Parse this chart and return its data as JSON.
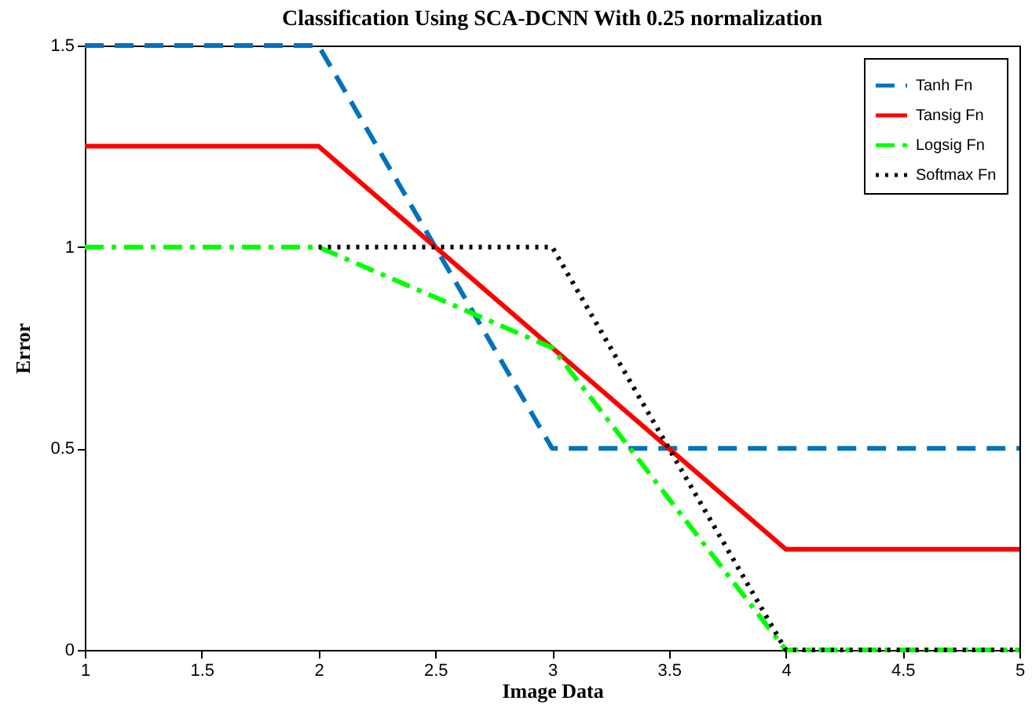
{
  "chart_data": {
    "type": "line",
    "title": "Classification Using SCA-DCNN With 0.25 normalization",
    "xlabel": "Image Data",
    "ylabel": "Error",
    "x": [
      1,
      2,
      3,
      4,
      5
    ],
    "series": [
      {
        "name": "Tanh Fn",
        "color": "#0072bd",
        "line_style": "dashed",
        "values": [
          1.5,
          1.5,
          0.5,
          0.5,
          0.5
        ]
      },
      {
        "name": "Tansig Fn",
        "color": "#ff0000",
        "line_style": "solid",
        "values": [
          1.25,
          1.25,
          0.75,
          0.25,
          0.25
        ]
      },
      {
        "name": "Logsig Fn",
        "color": "#00ff00",
        "line_style": "dashdot",
        "values": [
          1,
          1,
          0.75,
          0,
          0
        ]
      },
      {
        "name": "Softmax Fn",
        "color": "#000000",
        "line_style": "dotted",
        "values": [
          null,
          1,
          1,
          0,
          0
        ]
      }
    ],
    "xlim": [
      1,
      5
    ],
    "xticks": [
      1,
      1.5,
      2,
      2.5,
      3,
      3.5,
      4,
      4.5,
      5
    ],
    "ylim": [
      0,
      1.5
    ],
    "yticks": [
      0,
      0.5,
      1,
      1.5
    ],
    "grid": false,
    "legend": "top right",
    "marker": "none"
  }
}
